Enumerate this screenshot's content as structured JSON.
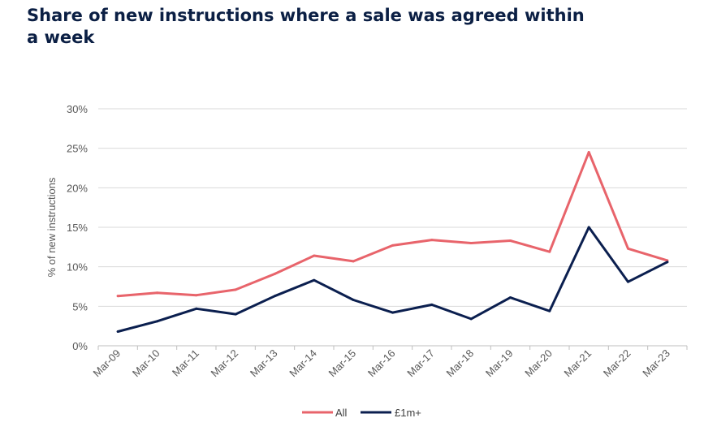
{
  "chart_data": {
    "type": "line",
    "title": "Share of new instructions where a sale was agreed within a week",
    "xlabel": "",
    "ylabel": "% of new instructions",
    "ylim": [
      0,
      30
    ],
    "yticks": [
      0,
      5,
      10,
      15,
      20,
      25,
      30
    ],
    "ytick_labels": [
      "0%",
      "5%",
      "10%",
      "15%",
      "20%",
      "25%",
      "30%"
    ],
    "grid": true,
    "legend_position": "bottom",
    "categories": [
      "Mar-09",
      "Mar-10",
      "Mar-11",
      "Mar-12",
      "Mar-13",
      "Mar-14",
      "Mar-15",
      "Mar-16",
      "Mar-17",
      "Mar-18",
      "Mar-19",
      "Mar-20",
      "Mar-21",
      "Mar-22",
      "Mar-23"
    ],
    "series": [
      {
        "name": "All",
        "color": "#e8646b",
        "values": [
          6.3,
          6.7,
          6.4,
          7.1,
          9.1,
          11.4,
          10.7,
          12.7,
          13.4,
          13.0,
          13.3,
          11.9,
          24.5,
          12.3,
          10.8
        ]
      },
      {
        "name": "£1m+",
        "color": "#0b1f4f",
        "values": [
          1.8,
          3.1,
          4.7,
          4.0,
          6.3,
          8.3,
          5.8,
          4.2,
          5.2,
          3.4,
          6.1,
          4.4,
          15.0,
          8.1,
          10.6
        ]
      }
    ]
  }
}
